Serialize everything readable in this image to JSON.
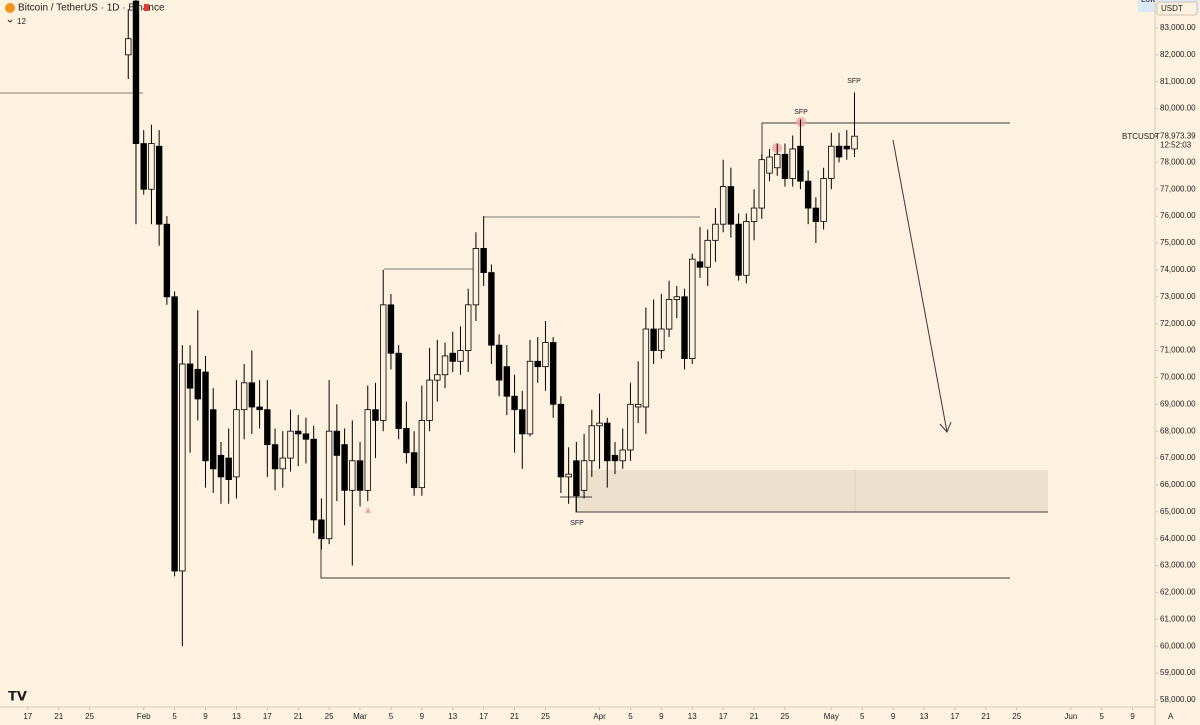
{
  "chart_data": {
    "type": "candlestick",
    "title": "Bitcoin / TetherUS · 1D · Binance",
    "indicator_count": "12",
    "currency": "USDT",
    "symbol": "BTCUSDT",
    "countdown": "12:52:03",
    "scale_mode": "A",
    "up_color": "#fdf1df",
    "down_color": "#000000",
    "outline_color": "#000000",
    "last_price": {
      "value": 78973.39,
      "label": "78,973.39"
    },
    "low_label": "Low",
    "low": [
      81100,
      75700,
      76800,
      75700,
      74900,
      72700,
      62600,
      60000,
      67200,
      68400,
      65900,
      65700,
      65300,
      65300,
      65500,
      67700,
      67900,
      68100,
      66300,
      65800,
      65900,
      66500,
      66700,
      66800,
      64200,
      63600,
      63800,
      65400,
      64500,
      63000,
      65200,
      65400,
      67000,
      68000,
      70300,
      67700,
      66800,
      65600,
      65600,
      68000,
      69100,
      69600,
      70200,
      70100,
      70200,
      72100,
      73400,
      70500,
      69300,
      68600,
      67200,
      66600,
      67800,
      69800,
      69500,
      68500,
      65700,
      65300,
      65000,
      65500,
      66300,
      66600,
      65900,
      66400,
      66600,
      66900,
      68300,
      67900,
      70500,
      70700,
      71500,
      72200,
      70300,
      70500,
      73700,
      73400,
      74300,
      75400,
      75200,
      73600,
      73500,
      75100,
      75900,
      77300,
      77500,
      77100,
      77100,
      77000,
      75700,
      75000,
      75500,
      77000,
      78000,
      78100,
      78200
    ],
    "annotations": [
      "SFP",
      "SFP",
      "SFP"
    ],
    "xlim": [
      13.4,
      161.6
    ],
    "xticks": [
      17,
      21,
      25,
      {
        "value": 32,
        "label": "Feb"
      },
      {
        "value": 36,
        "label": "5"
      },
      {
        "value": 40,
        "label": "9"
      },
      {
        "value": 44,
        "label": "13"
      },
      {
        "value": 48,
        "label": "17"
      },
      {
        "value": 52,
        "label": "21"
      },
      {
        "value": 56,
        "label": "25"
      },
      {
        "value": 60,
        "label": "Mar"
      },
      {
        "value": 64,
        "label": "5"
      },
      {
        "value": 68,
        "label": "9"
      },
      {
        "value": 72,
        "label": "13"
      },
      {
        "value": 76,
        "label": "17"
      },
      {
        "value": 80,
        "label": "21"
      },
      {
        "value": 84,
        "label": "25"
      },
      {
        "value": 91,
        "label": "Apr"
      },
      {
        "value": 95,
        "label": "5"
      },
      {
        "value": 99,
        "label": "9"
      },
      {
        "value": 103,
        "label": "13"
      },
      {
        "value": 107,
        "label": "17"
      },
      {
        "value": 111,
        "label": "21"
      },
      {
        "value": 115,
        "label": "25"
      },
      {
        "value": 121,
        "label": "May"
      },
      {
        "value": 125,
        "label": "5"
      },
      {
        "value": 129,
        "label": "9"
      },
      {
        "value": 133,
        "label": "13"
      },
      {
        "value": 137,
        "label": "17"
      },
      {
        "value": 141,
        "label": "21"
      },
      {
        "value": 145,
        "label": "25"
      },
      {
        "value": 152,
        "label": "Jun"
      },
      {
        "value": 156,
        "label": "5"
      },
      {
        "value": 160,
        "label": "9"
      }
    ],
    "ylim": [
      57740,
      84040
    ],
    "yticks": [
      {
        "value": 58000,
        "label": "58,000.00"
      },
      {
        "value": 59000,
        "label": "59,000.00"
      },
      {
        "value": 60000,
        "label": "60,000.00"
      },
      {
        "value": 61000,
        "label": "61,000.00"
      },
      {
        "value": 62000,
        "label": "62,000.00"
      },
      {
        "value": 63000,
        "label": "63,000.00"
      },
      {
        "value": 64000,
        "label": "64,000.00"
      },
      {
        "value": 65000,
        "label": "65,000.00"
      },
      {
        "value": 66000,
        "label": "66,000.00"
      },
      {
        "value": 67000,
        "label": "67,000.00"
      },
      {
        "value": 68000,
        "label": "68,000.00"
      },
      {
        "value": 69000,
        "label": "69,000.00"
      },
      {
        "value": 70000,
        "label": "70,000.00"
      },
      {
        "value": 71000,
        "label": "71,000.00"
      },
      {
        "value": 72000,
        "label": "72,000.00"
      },
      {
        "value": 73000,
        "label": "73,000.00"
      },
      {
        "value": 74000,
        "label": "74,000.00"
      },
      {
        "value": 75000,
        "label": "75,000.00"
      },
      {
        "value": 76000,
        "label": "76,000.00"
      },
      {
        "value": 77000,
        "label": "77,000.00"
      },
      {
        "value": 78000,
        "label": "78,000.00"
      },
      {
        "value": 79000,
        "label": "79,000.00"
      },
      {
        "value": 80000,
        "label": "80,000.00"
      },
      {
        "value": 81000,
        "label": "81,000.00"
      },
      {
        "value": 82000,
        "label": "82,000.00"
      },
      {
        "value": 83000,
        "label": "83,000.00"
      }
    ],
    "x": [
      30,
      31,
      32,
      33,
      34,
      35,
      36,
      37,
      38,
      39,
      40,
      41,
      42,
      43,
      44,
      45,
      46,
      47,
      48,
      49,
      50,
      51,
      52,
      53,
      54,
      55,
      56,
      57,
      58,
      59,
      60,
      61,
      62,
      63,
      64,
      65,
      66,
      67,
      68,
      69,
      70,
      71,
      72,
      73,
      74,
      75,
      76,
      77,
      78,
      79,
      80,
      81,
      82,
      83,
      84,
      85,
      86,
      87,
      88,
      89,
      90,
      91,
      92,
      93,
      94,
      95,
      96,
      97,
      98,
      99,
      100,
      101,
      102,
      103,
      104,
      105,
      106,
      107,
      108,
      109,
      110,
      111,
      112,
      113,
      114,
      115,
      116,
      117,
      118,
      119,
      120,
      121,
      122,
      123,
      124
    ],
    "open": [
      82000,
      84000,
      78700,
      77000,
      78600,
      75700,
      73000,
      62800,
      70500,
      70300,
      70200,
      68800,
      67100,
      67000,
      66300,
      68800,
      69800,
      68900,
      68800,
      67500,
      66600,
      67000,
      68000,
      67900,
      67700,
      64700,
      64000,
      68000,
      67500,
      65800,
      66900,
      65800,
      68800,
      68400,
      72700,
      70900,
      68100,
      67200,
      65900,
      68400,
      69900,
      70100,
      70900,
      70600,
      71000,
      72700,
      74800,
      73900,
      71200,
      70400,
      69300,
      68800,
      67900,
      70600,
      70400,
      71300,
      69000,
      66300,
      66900,
      65800,
      66900,
      68200,
      68300,
      67100,
      66900,
      67300,
      68900,
      68900,
      71800,
      71000,
      71800,
      72900,
      73000,
      70700,
      74300,
      74100,
      75100,
      75700,
      77100,
      75700,
      73800,
      75800,
      76300,
      77600,
      77800,
      78300,
      77400,
      78600,
      77300,
      76300,
      75800,
      77400,
      78600,
      78600,
      78500
    ],
    "high": [
      83700,
      84500,
      79200,
      79400,
      79200,
      76000,
      73200,
      71200,
      71200,
      72500,
      70800,
      69600,
      67600,
      68100,
      69900,
      70500,
      71000,
      69900,
      69900,
      68100,
      68000,
      68800,
      68600,
      68500,
      68200,
      65500,
      69900,
      69000,
      68100,
      68400,
      67600,
      69700,
      69800,
      74000,
      73100,
      71200,
      69100,
      68000,
      69700,
      71100,
      71400,
      71300,
      71700,
      71900,
      73300,
      75400,
      76000,
      74200,
      71600,
      71200,
      70100,
      69500,
      71400,
      71500,
      72100,
      71500,
      69300,
      67400,
      67600,
      67900,
      68800,
      69400,
      68500,
      67600,
      68100,
      69800,
      70600,
      72600,
      72900,
      73100,
      73600,
      73400,
      73300,
      74600,
      75600,
      75500,
      76300,
      78100,
      77800,
      76100,
      76100,
      77000,
      78300,
      78500,
      78700,
      78700,
      79000,
      79600,
      77700,
      76700,
      77800,
      79100,
      79100,
      79200,
      80600
    ],
    "close": [
      82600,
      78700,
      77000,
      78700,
      75700,
      73000,
      62800,
      70500,
      69600,
      69200,
      66900,
      66600,
      66300,
      66200,
      68800,
      69800,
      68900,
      68800,
      67500,
      66600,
      67000,
      68000,
      67900,
      67700,
      64700,
      64000,
      68000,
      67100,
      65800,
      66900,
      65800,
      68800,
      68400,
      72700,
      70900,
      68100,
      67200,
      65900,
      68400,
      69900,
      70100,
      70800,
      70600,
      71000,
      72700,
      74800,
      73900,
      71200,
      69900,
      69300,
      68800,
      67900,
      70600,
      70400,
      71300,
      69000,
      66300,
      66400,
      65600,
      66900,
      68200,
      68300,
      66900,
      66900,
      67300,
      69000,
      69000,
      71800,
      71000,
      71800,
      72900,
      73000,
      70700,
      74400,
      74100,
      75100,
      75700,
      77100,
      75700,
      73800,
      75800,
      76300,
      78100,
      78200,
      78300,
      77400,
      78500,
      77300,
      76300,
      75800,
      77400,
      78600,
      78200,
      78500,
      78973.39
    ]
  }
}
